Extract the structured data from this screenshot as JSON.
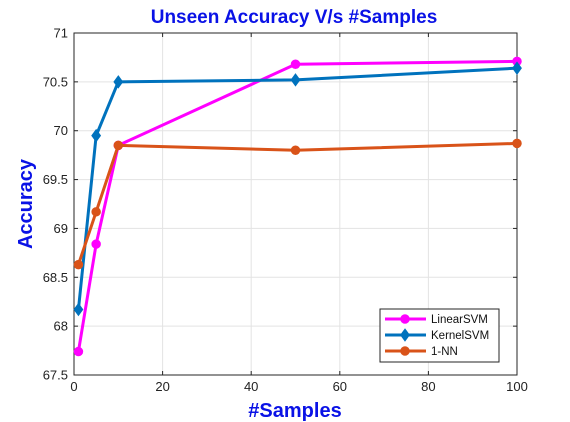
{
  "chart_data": {
    "type": "line",
    "title": "Unseen Accuracy V/s #Samples",
    "xlabel": "#Samples",
    "ylabel": "Accuracy",
    "xlim": [
      0,
      100
    ],
    "ylim": [
      67.5,
      71
    ],
    "x_ticks": [
      0,
      20,
      40,
      60,
      80,
      100
    ],
    "x_tick_labels": [
      "0",
      "20",
      "40",
      "60",
      "80",
      "100"
    ],
    "y_ticks": [
      67.5,
      68,
      68.5,
      69,
      69.5,
      70,
      70.5,
      71
    ],
    "y_tick_labels": [
      "67.5",
      "68",
      "68.5",
      "69",
      "69.5",
      "70",
      "70.5",
      "71"
    ],
    "grid": true,
    "legend_position": "bottom-right",
    "x": [
      1,
      5,
      10,
      50,
      100
    ],
    "series": [
      {
        "name": "LinearSVM",
        "color": "#ff00ff",
        "marker": "circle",
        "values": [
          67.74,
          68.84,
          69.85,
          70.68,
          70.71
        ]
      },
      {
        "name": "KernelSVM",
        "color": "#0072bd",
        "marker": "diamond",
        "values": [
          68.17,
          69.95,
          70.5,
          70.52,
          70.64
        ]
      },
      {
        "name": "1-NN",
        "color": "#d95319",
        "marker": "circle",
        "values": [
          68.63,
          69.17,
          69.85,
          69.8,
          69.87
        ]
      }
    ]
  }
}
